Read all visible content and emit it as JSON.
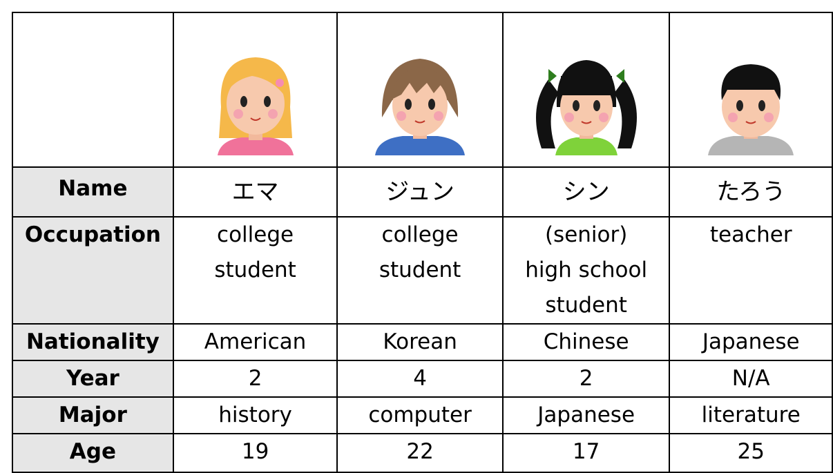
{
  "table": {
    "rows": [
      {
        "label": "Name",
        "cells": [
          [
            "エマ"
          ],
          [
            "ジュン"
          ],
          [
            "シン"
          ],
          [
            "たろう"
          ]
        ]
      },
      {
        "label": "Occupation",
        "cells": [
          [
            "college",
            "student"
          ],
          [
            "college",
            "student"
          ],
          [
            "(senior)",
            "high school",
            "student"
          ],
          [
            "teacher"
          ]
        ]
      },
      {
        "label": "Nationality",
        "cells": [
          [
            "American"
          ],
          [
            "Korean"
          ],
          [
            "Chinese"
          ],
          [
            "Japanese"
          ]
        ]
      },
      {
        "label": "Year",
        "cells": [
          [
            "2"
          ],
          [
            "4"
          ],
          [
            "2"
          ],
          [
            "N/A"
          ]
        ]
      },
      {
        "label": "Major",
        "cells": [
          [
            "history"
          ],
          [
            "computer"
          ],
          [
            "Japanese"
          ],
          [
            "literature"
          ]
        ]
      },
      {
        "label": "Age",
        "cells": [
          [
            "19"
          ],
          [
            "22"
          ],
          [
            "17"
          ],
          [
            "25"
          ]
        ]
      }
    ]
  }
}
